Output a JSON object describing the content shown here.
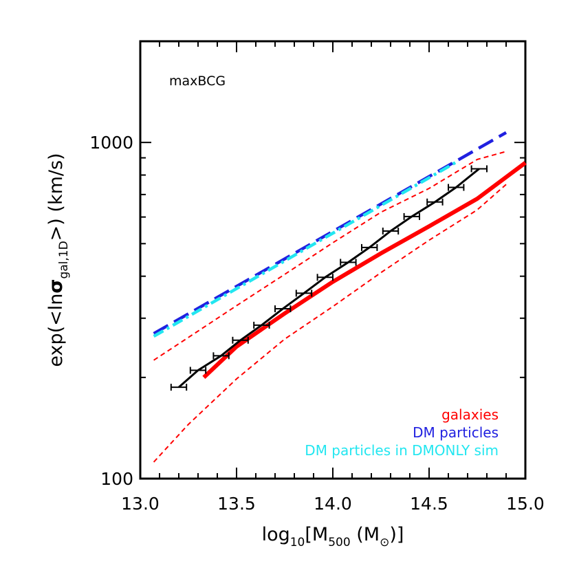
{
  "chart_data": {
    "type": "line",
    "annotation": "maxBCG",
    "xlabel": {
      "base": "log",
      "sub1": "10",
      "mid": "[M",
      "sub2": "500",
      "tail": " (M",
      "sym": "⊙",
      "end": ")]"
    },
    "ylabel": {
      "pre": "exp(<ln",
      "sym": "σ",
      "sub": "gal,1D",
      "post": ">) (km/s)"
    },
    "xlim": [
      13.0,
      15.0
    ],
    "ylim": [
      100,
      2000
    ],
    "yscale": "log",
    "xticks": [
      "13.0",
      "13.5",
      "14.0",
      "14.5",
      "15.0"
    ],
    "yticks": [
      {
        "value": 100,
        "label": "100"
      },
      {
        "value": 1000,
        "label": "1000"
      }
    ],
    "legend_placement": "bottom-right",
    "colors": {
      "galaxies": "#ff0000",
      "dm": "#2020e0",
      "dmonly": "#22e6f0",
      "maxbcg": "#000000"
    },
    "series": [
      {
        "name": "galaxies",
        "style": "solid-thick",
        "color": "#ff0000",
        "x": [
          13.33,
          13.5,
          13.75,
          14.0,
          14.25,
          14.5,
          14.75,
          15.0
        ],
        "y": [
          200,
          247,
          310,
          385,
          468,
          563,
          680,
          870
        ]
      },
      {
        "style": "dashed-thin",
        "color": "#ff0000",
        "x": [
          13.07,
          13.25,
          13.5,
          13.75,
          14.0,
          14.25,
          14.5,
          14.75,
          14.9
        ],
        "y": [
          225,
          263,
          327,
          405,
          503,
          620,
          730,
          890,
          940
        ]
      },
      {
        "style": "dashed-thin",
        "color": "#ff0000",
        "x": [
          13.07,
          13.25,
          13.5,
          13.75,
          14.0,
          14.25,
          14.5,
          14.75,
          14.9
        ],
        "y": [
          112,
          145,
          198,
          260,
          325,
          410,
          512,
          630,
          750
        ]
      },
      {
        "name": "DM particles",
        "style": "dashed-thick",
        "color": "#2020e0",
        "x": [
          13.07,
          14.9
        ],
        "y": [
          270,
          1070
        ]
      },
      {
        "name": "DM particles in DMONLY sim",
        "style": "dash-dot-thick",
        "color": "#22e6f0",
        "x": [
          13.07,
          14.65
        ],
        "y": [
          265,
          880
        ]
      },
      {
        "style": "solid-black",
        "color": "#000000",
        "x": [
          13.2,
          13.3,
          13.42,
          13.52,
          13.63,
          13.74,
          13.85,
          13.96,
          14.08,
          14.19,
          14.3,
          14.41,
          14.53,
          14.64,
          14.76
        ],
        "y": [
          187,
          210,
          232,
          258,
          286,
          320,
          356,
          397,
          440,
          487,
          545,
          602,
          665,
          735,
          835
        ],
        "xerr": [
          0.04,
          0.04,
          0.04,
          0.04,
          0.04,
          0.04,
          0.04,
          0.04,
          0.04,
          0.04,
          0.04,
          0.04,
          0.04,
          0.04,
          0.04
        ]
      }
    ]
  }
}
